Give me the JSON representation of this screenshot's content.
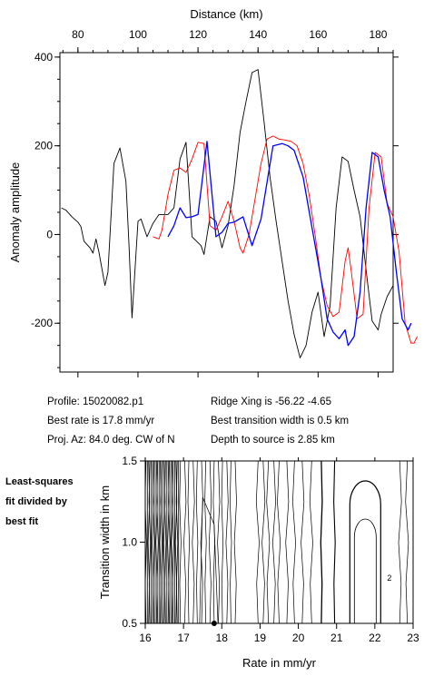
{
  "chart_data": [
    {
      "type": "line",
      "xlabel": "Distance (km)",
      "ylabel": "Anomaly amplitude",
      "xlim": [
        74,
        185
      ],
      "ylim": [
        -310,
        410
      ],
      "x_ticks": [
        80,
        100,
        120,
        140,
        160,
        180
      ],
      "y_ticks": [
        400,
        200,
        0,
        -200
      ],
      "grid": false,
      "series": [
        {
          "color": "#000000",
          "points": [
            [
              74.5,
              60
            ],
            [
              76,
              55
            ],
            [
              78,
              40
            ],
            [
              80,
              28
            ],
            [
              81,
              18
            ],
            [
              82,
              -15
            ],
            [
              84,
              -30
            ],
            [
              85,
              -42
            ],
            [
              86,
              -10
            ],
            [
              87,
              -40
            ],
            [
              89,
              -115
            ],
            [
              90,
              -85
            ],
            [
              92,
              160
            ],
            [
              94,
              195
            ],
            [
              96,
              120
            ],
            [
              97,
              -20
            ],
            [
              98,
              -188
            ],
            [
              100,
              30
            ],
            [
              101,
              35
            ],
            [
              103,
              -5
            ],
            [
              105,
              25
            ],
            [
              107,
              45
            ],
            [
              110,
              45
            ],
            [
              112,
              60
            ],
            [
              114,
              170
            ],
            [
              116,
              208
            ],
            [
              118,
              -5
            ],
            [
              121,
              -25
            ],
            [
              122,
              -45
            ],
            [
              124,
              40
            ],
            [
              126,
              30
            ],
            [
              128,
              -30
            ],
            [
              130,
              20
            ],
            [
              132,
              110
            ],
            [
              134,
              230
            ],
            [
              136,
              300
            ],
            [
              138,
              365
            ],
            [
              140,
              372
            ],
            [
              142,
              255
            ],
            [
              144,
              130
            ],
            [
              146,
              30
            ],
            [
              148,
              -60
            ],
            [
              150,
              -150
            ],
            [
              152,
              -225
            ],
            [
              154,
              -278
            ],
            [
              156,
              -250
            ],
            [
              158,
              -175
            ],
            [
              160,
              -130
            ],
            [
              162,
              -230
            ],
            [
              164,
              -160
            ],
            [
              166,
              60
            ],
            [
              168,
              175
            ],
            [
              170,
              165
            ],
            [
              172,
              100
            ],
            [
              174,
              40
            ],
            [
              176,
              -80
            ],
            [
              178,
              -195
            ],
            [
              180,
              -215
            ],
            [
              181,
              -180
            ],
            [
              183,
              -140
            ],
            [
              185,
              -115
            ]
          ]
        },
        {
          "color": "#ff0000",
          "points": [
            [
              105,
              -5
            ],
            [
              107,
              -10
            ],
            [
              108,
              10
            ],
            [
              110,
              90
            ],
            [
              112,
              145
            ],
            [
              114,
              150
            ],
            [
              116,
              140
            ],
            [
              118,
              170
            ],
            [
              120,
              208
            ],
            [
              122,
              205
            ],
            [
              124,
              20
            ],
            [
              126,
              10
            ],
            [
              128,
              40
            ],
            [
              130,
              75
            ],
            [
              132,
              30
            ],
            [
              134,
              -30
            ],
            [
              135,
              -42
            ],
            [
              137,
              0
            ],
            [
              139,
              80
            ],
            [
              141,
              160
            ],
            [
              143,
              215
            ],
            [
              145,
              222
            ],
            [
              147,
              215
            ],
            [
              149,
              213
            ],
            [
              151,
              210
            ],
            [
              153,
              200
            ],
            [
              155,
              160
            ],
            [
              157,
              90
            ],
            [
              159,
              0
            ],
            [
              161,
              -100
            ],
            [
              163,
              -160
            ],
            [
              165,
              -185
            ],
            [
              167,
              -175
            ],
            [
              169,
              -60
            ],
            [
              170,
              -30
            ],
            [
              171,
              -80
            ],
            [
              173,
              -190
            ],
            [
              175,
              -180
            ],
            [
              177,
              60
            ],
            [
              179,
              185
            ],
            [
              181,
              175
            ],
            [
              183,
              70
            ],
            [
              185,
              40
            ],
            [
              187,
              -40
            ],
            [
              189,
              -200
            ],
            [
              191,
              -245
            ],
            [
              192,
              -245
            ],
            [
              193,
              -230
            ]
          ]
        },
        {
          "color": "#0000ff",
          "points": [
            [
              110,
              -5
            ],
            [
              112,
              20
            ],
            [
              114,
              60
            ],
            [
              116,
              38
            ],
            [
              118,
              40
            ],
            [
              120,
              45
            ],
            [
              123,
              210
            ],
            [
              126,
              -5
            ],
            [
              128,
              5
            ],
            [
              130,
              25
            ],
            [
              132,
              28
            ],
            [
              135,
              40
            ],
            [
              138,
              -25
            ],
            [
              141,
              35
            ],
            [
              145,
              200
            ],
            [
              148,
              205
            ],
            [
              150,
              200
            ],
            [
              152,
              190
            ],
            [
              155,
              130
            ],
            [
              158,
              15
            ],
            [
              161,
              -100
            ],
            [
              163,
              -190
            ],
            [
              165,
              -220
            ],
            [
              167,
              -235
            ],
            [
              169,
              -215
            ],
            [
              170,
              -250
            ],
            [
              172,
              -230
            ],
            [
              174,
              -130
            ],
            [
              176,
              60
            ],
            [
              178,
              185
            ],
            [
              180,
              175
            ],
            [
              182,
              100
            ],
            [
              184,
              40
            ],
            [
              186,
              -80
            ],
            [
              188,
              -190
            ],
            [
              190,
              -215
            ],
            [
              191,
              -200
            ]
          ]
        }
      ]
    },
    {
      "type": "contour",
      "xlabel": "Rate in mm/yr",
      "ylabel": "Transition width in km",
      "xlim": [
        16,
        23
      ],
      "ylim": [
        0.5,
        1.5
      ],
      "x_ticks": [
        16,
        17,
        18,
        19,
        20,
        21,
        22,
        23
      ],
      "y_ticks": [
        1.5,
        1.0,
        0.5
      ],
      "contour_label": "2",
      "best_point": [
        17.8,
        0.5
      ]
    }
  ],
  "info": {
    "profile": "Profile: 15020082.p1",
    "best_rate": "Best rate is 17.8 mm/yr",
    "proj_az": "Proj. Az: 84.0 deg. CW of N",
    "ridge_xing": "Ridge Xing is -56.22 -4.65",
    "best_transition": "Best transition width is 0.5 km",
    "depth": "Depth to source is   2.85 km"
  },
  "side_note": {
    "line1": "Least-squares",
    "line2": "fit divided by",
    "line3": "best fit"
  }
}
